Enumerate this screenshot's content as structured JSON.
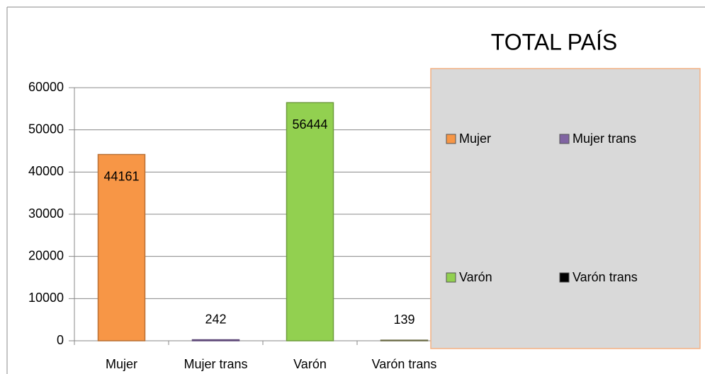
{
  "chart_data": {
    "type": "bar",
    "title": "TOTAL PAÍS",
    "categories": [
      "Mujer",
      "Mujer trans",
      "Varón",
      "Varón trans"
    ],
    "values": [
      44161,
      242,
      56444,
      139
    ],
    "colors": [
      "#f79646",
      "#8064a2",
      "#92d050",
      "#000000"
    ],
    "ylim": [
      0,
      60000
    ],
    "yticks": [
      0,
      10000,
      20000,
      30000,
      40000,
      50000,
      60000
    ],
    "grid": true,
    "legend": "right"
  }
}
